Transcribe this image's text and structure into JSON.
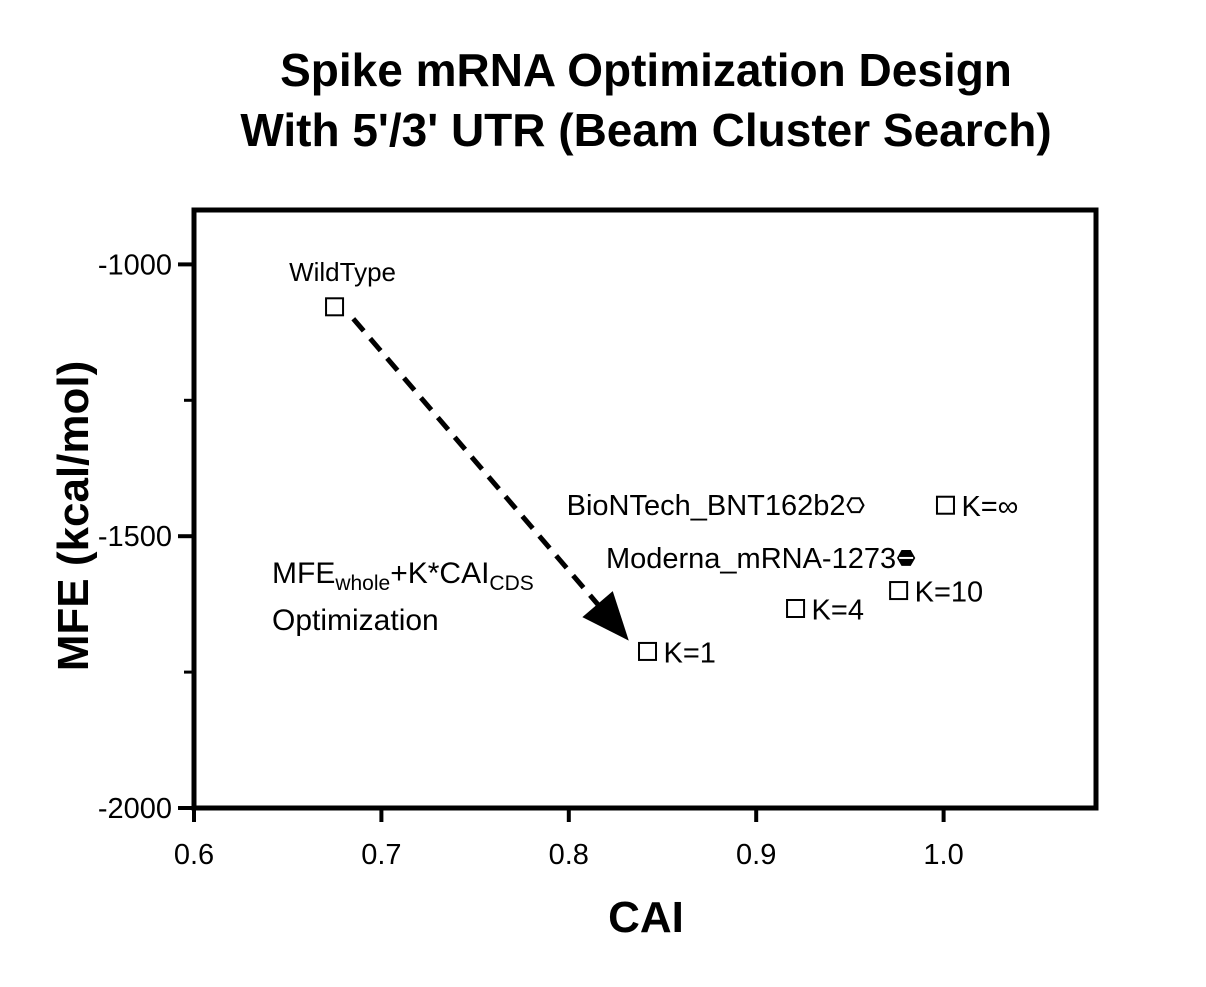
{
  "chart_data": {
    "type": "scatter",
    "title": [
      "Spike mRNA Optimization Design",
      "With 5'/3' UTR (Beam Cluster Search)"
    ],
    "xlabel": "CAI",
    "ylabel": "MFE (kcal/mol)",
    "xlim": [
      0.6,
      1.08
    ],
    "ylim": [
      -2000,
      -900
    ],
    "x_ticks": [
      0.6,
      0.7,
      0.8,
      0.9,
      1.0
    ],
    "x_tick_labels": [
      "0.6",
      "0.7",
      "0.8",
      "0.9",
      "1.0"
    ],
    "y_ticks": [
      -1000,
      -1500,
      -2000
    ],
    "y_tick_labels": [
      "-1000",
      "-1500",
      "-2000"
    ],
    "y_minor_ticks": [
      -1250,
      -1750
    ],
    "grid": false,
    "points": [
      {
        "label": "WildType",
        "x": 0.675,
        "y": -1078,
        "marker": "square",
        "label_pos": "above"
      },
      {
        "label": "K=1",
        "x": 0.842,
        "y": -1712,
        "marker": "square",
        "label_pos": "right"
      },
      {
        "label": "K=4",
        "x": 0.921,
        "y": -1633,
        "marker": "square",
        "label_pos": "right"
      },
      {
        "label": "K=10",
        "x": 0.976,
        "y": -1600,
        "marker": "square",
        "label_pos": "right"
      },
      {
        "label": "K=∞",
        "x": 1.001,
        "y": -1443,
        "marker": "square",
        "label_pos": "right"
      },
      {
        "label": "BioNTech_BNT162b2",
        "x": 0.953,
        "y": -1443,
        "marker": "hexagon-open",
        "label_pos": "left"
      },
      {
        "label": "Moderna_mRNA-1273",
        "x": 0.98,
        "y": -1540,
        "marker": "hexagon-filled",
        "label_pos": "left"
      }
    ],
    "arrow": {
      "from": [
        0.685,
        -1100
      ],
      "to": [
        0.832,
        -1692
      ],
      "style": "dashed"
    },
    "annotation": {
      "parts": [
        "MFE",
        "whole",
        "+K*CAI",
        "CDS"
      ],
      "line2": "Optimization"
    }
  }
}
